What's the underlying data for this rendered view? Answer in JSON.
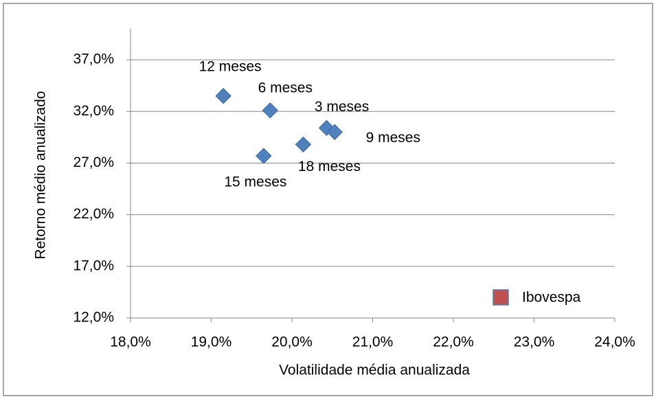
{
  "chart_data": {
    "type": "scatter",
    "xlabel": "Volatilidade média anualizada",
    "ylabel": "Retorno médio anualizado",
    "xlim": [
      18,
      24
    ],
    "ylim": [
      12,
      40
    ],
    "xticks": [
      {
        "value": 18,
        "label": "18,0%"
      },
      {
        "value": 19,
        "label": "19,0%"
      },
      {
        "value": 20,
        "label": "20,0%"
      },
      {
        "value": 21,
        "label": "21,0%"
      },
      {
        "value": 22,
        "label": "22,0%"
      },
      {
        "value": 23,
        "label": "23,0%"
      },
      {
        "value": 24,
        "label": "24,0%"
      }
    ],
    "yticks": [
      {
        "value": 12,
        "label": "12,0%"
      },
      {
        "value": 17,
        "label": "17,0%"
      },
      {
        "value": 22,
        "label": "22,0%"
      },
      {
        "value": 27,
        "label": "27,0%"
      },
      {
        "value": 32,
        "label": "32,0%"
      },
      {
        "value": 37,
        "label": "37,0%"
      }
    ],
    "grid": true,
    "legend": "lower-right",
    "series": [
      {
        "name": "Ibovespa",
        "color": "#c0504d",
        "marker_color": "#4f81bd",
        "x": [
          19.15,
          19.73,
          20.43,
          20.53,
          20.14,
          19.65
        ],
        "values": [
          33.5,
          32.1,
          30.4,
          30.0,
          28.8,
          27.7
        ],
        "point_labels": [
          "12 meses",
          "6 meses",
          "3 meses",
          "9 meses",
          "18 meses",
          "15 meses"
        ]
      }
    ]
  }
}
